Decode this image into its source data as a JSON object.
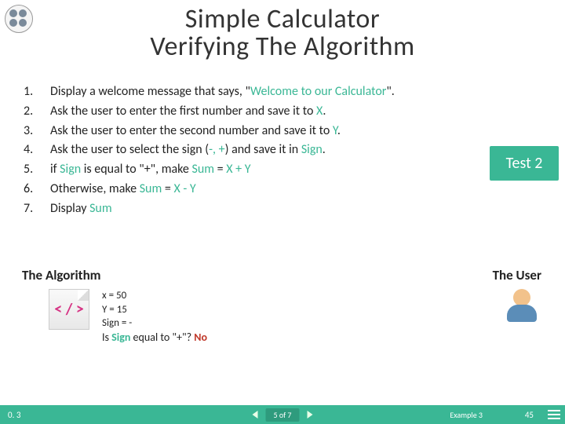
{
  "title": {
    "line1": "Simple Calculator",
    "line2": "Verifying The Algorithm"
  },
  "steps": [
    {
      "num": "1.",
      "pre": "Display a welcome message that says, \"",
      "green": "Welcome to our Calculator",
      "post": "\"."
    },
    {
      "num": "2.",
      "pre": "Ask the user to enter the first number and save it to ",
      "green": "X",
      "post": "."
    },
    {
      "num": "3.",
      "pre": "Ask the user to enter the second number and save it to ",
      "green": "Y",
      "post": "."
    },
    {
      "num": "4.",
      "pre": "Ask the user to select the sign (",
      "green": "-, +",
      "post_a": ") and save it in ",
      "green2": "Sign",
      "post": "."
    },
    {
      "num": "5.",
      "pre": "if ",
      "green": "Sign",
      "post_a": " is equal to \"+\", make ",
      "green2": "Sum",
      "post_b": " = ",
      "green3": "X + Y",
      "post": ""
    },
    {
      "num": "6.",
      "pre": "Otherwise, make ",
      "green": "Sum",
      "post_a": " = ",
      "green2": "X - Y",
      "post": ""
    },
    {
      "num": "7.",
      "pre": "Display ",
      "green": "Sum",
      "post": ""
    }
  ],
  "badge": "Test 2",
  "labels": {
    "algorithm": "The Algorithm",
    "user": "The User"
  },
  "code_icon": "< / >",
  "code": {
    "l1": "x = 50",
    "l2": "Y = 15",
    "l3": "Sign = -",
    "l4_a": "Is ",
    "l4_green": "Sign",
    "l4_b": " equal to \"+\"? ",
    "l4_no": "No"
  },
  "footer": {
    "version": "0. 3",
    "pos": "5 of 7",
    "example": "Example 3",
    "page": "45"
  },
  "colors": {
    "accent": "#3ab795"
  }
}
